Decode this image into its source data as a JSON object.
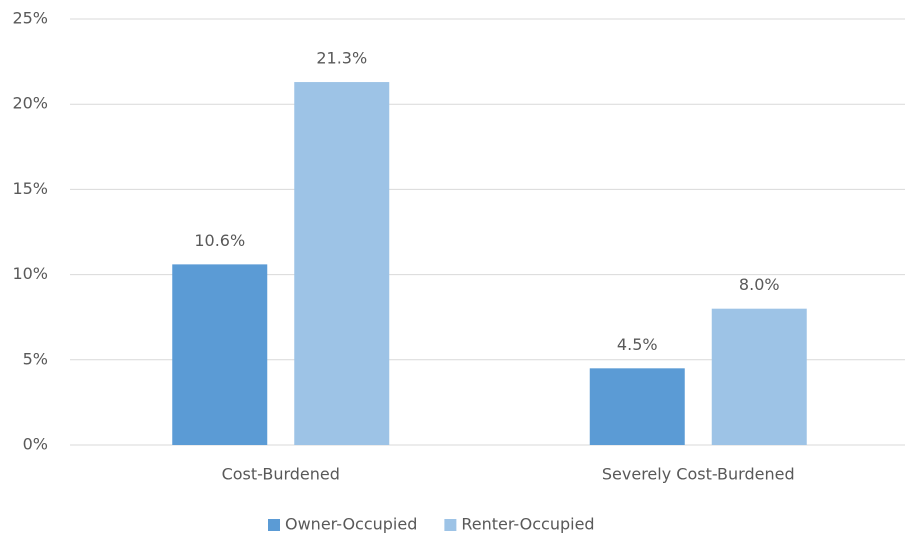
{
  "chart_data": {
    "type": "bar",
    "categories": [
      "Cost-Burdened",
      "Severely Cost-Burdened"
    ],
    "series": [
      {
        "name": "Owner-Occupied",
        "color": "#5b9bd5",
        "values": [
          10.6,
          4.5
        ],
        "value_labels": [
          "10.6%",
          "4.5%"
        ]
      },
      {
        "name": "Renter-Occupied",
        "color": "#9dc3e6",
        "values": [
          21.3,
          8.0
        ],
        "value_labels": [
          "21.3%",
          "8.0%"
        ]
      }
    ],
    "ylim": [
      0,
      25
    ],
    "yticks": [
      {
        "value": 0,
        "label": "0%"
      },
      {
        "value": 5,
        "label": "5%"
      },
      {
        "value": 10,
        "label": "10%"
      },
      {
        "value": 15,
        "label": "15%"
      },
      {
        "value": 20,
        "label": "20%"
      },
      {
        "value": 25,
        "label": "25%"
      }
    ],
    "grid": true,
    "legend": "bottom"
  }
}
